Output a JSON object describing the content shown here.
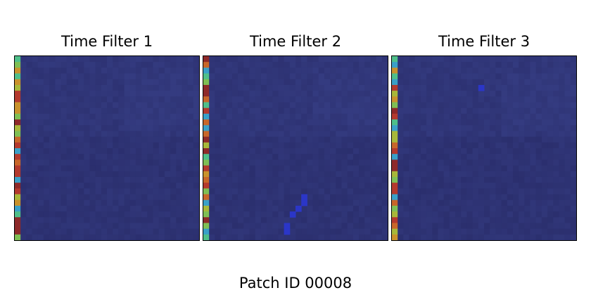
{
  "chart_data": {
    "type": "heatmap",
    "panels": [
      {
        "title": "Time Filter 1",
        "colormap": "turbo",
        "grid": false
      },
      {
        "title": "Time Filter 2",
        "colormap": "turbo",
        "grid": false
      },
      {
        "title": "Time Filter 3",
        "colormap": "turbo",
        "grid": false
      }
    ],
    "footer": "Patch ID 00008"
  },
  "colors": {
    "background_dark": "#2b2f6e",
    "background_mid": "#343b80",
    "highlight_blue": "#2b36c8",
    "edge_strip_colors": [
      "#b43a2e",
      "#c8672a",
      "#c9922c",
      "#4fbf8a",
      "#7fbf54",
      "#a8b83a",
      "#3aa0c8",
      "#8e2a2a"
    ]
  }
}
